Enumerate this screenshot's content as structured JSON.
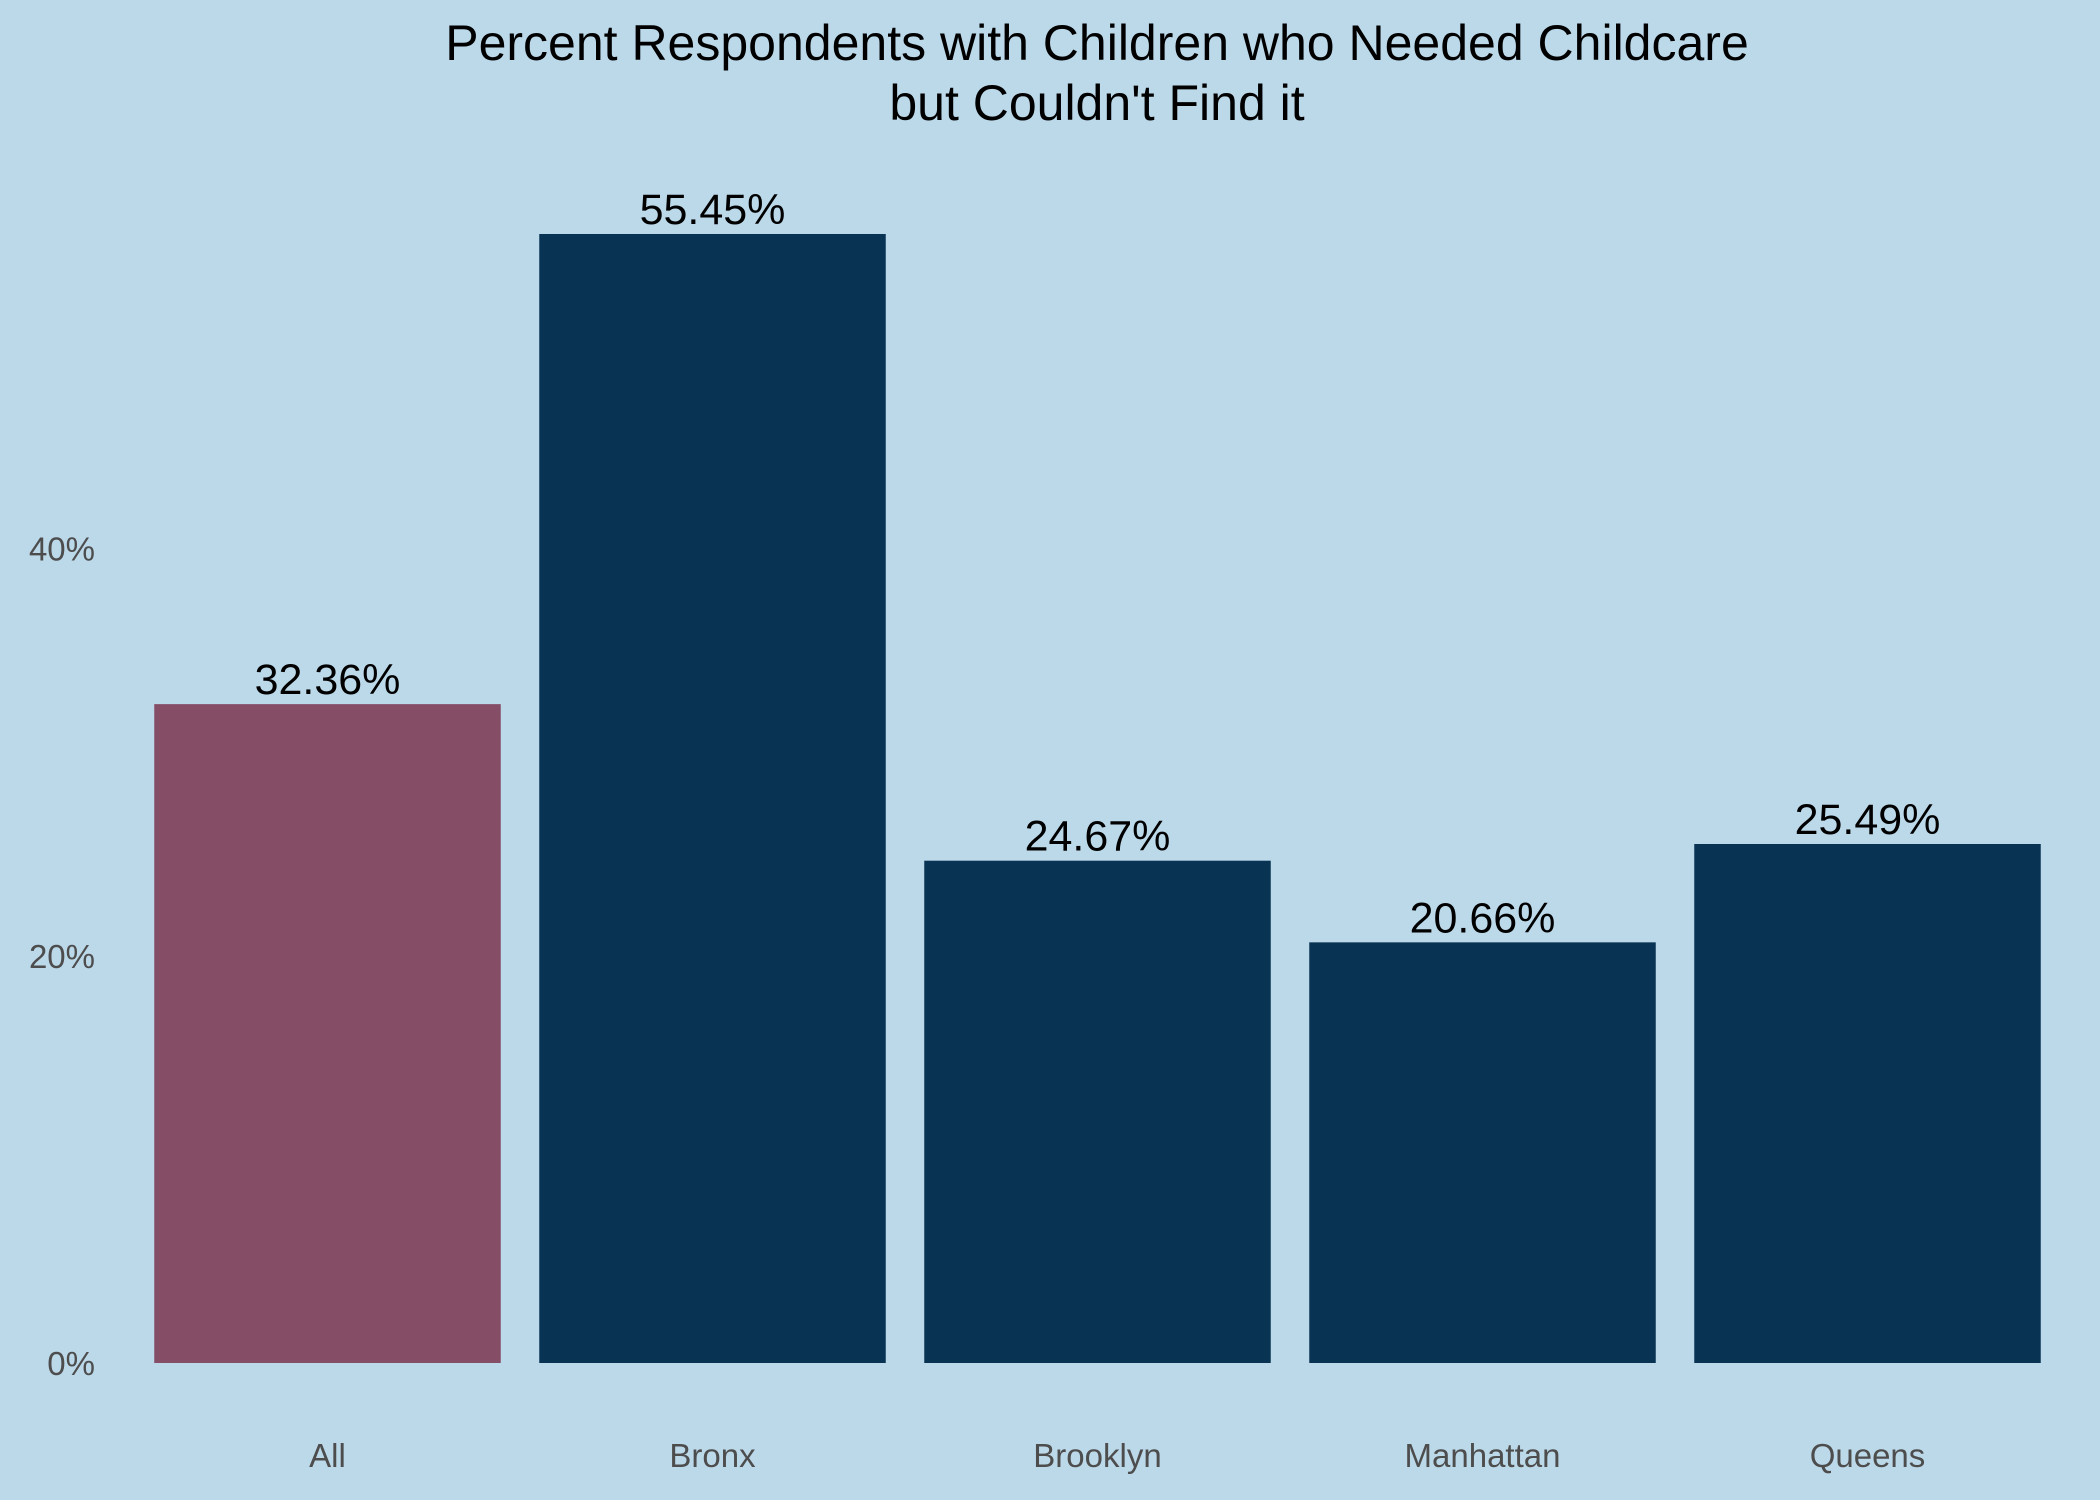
{
  "chart_data": {
    "type": "bar",
    "title": "Percent Respondents with Children who Needed Childcare",
    "subtitle": "but Couldn't Find it",
    "xlabel": "",
    "ylabel": "",
    "categories": [
      "All",
      "Bronx",
      "Brooklyn",
      "Manhattan",
      "Queens"
    ],
    "values": [
      32.36,
      55.45,
      24.67,
      20.66,
      25.49
    ],
    "data_labels": [
      "32.36%",
      "55.45%",
      "24.67%",
      "20.66%",
      "25.49%"
    ],
    "ylim": [
      0,
      58.2
    ],
    "yticks": [
      0,
      20,
      40
    ],
    "ytick_labels": [
      "0%",
      "20%",
      "40%"
    ],
    "grid": false,
    "legend": "none",
    "colors": {
      "background": "#bcd9ea",
      "highlight_bar": "#864d67",
      "bar": "#083353",
      "title_text": "#000000",
      "label_text": "#000000",
      "tick_text": "#4d4d4d"
    },
    "bar_colors": [
      "highlight_bar",
      "bar",
      "bar",
      "bar",
      "bar"
    ]
  }
}
